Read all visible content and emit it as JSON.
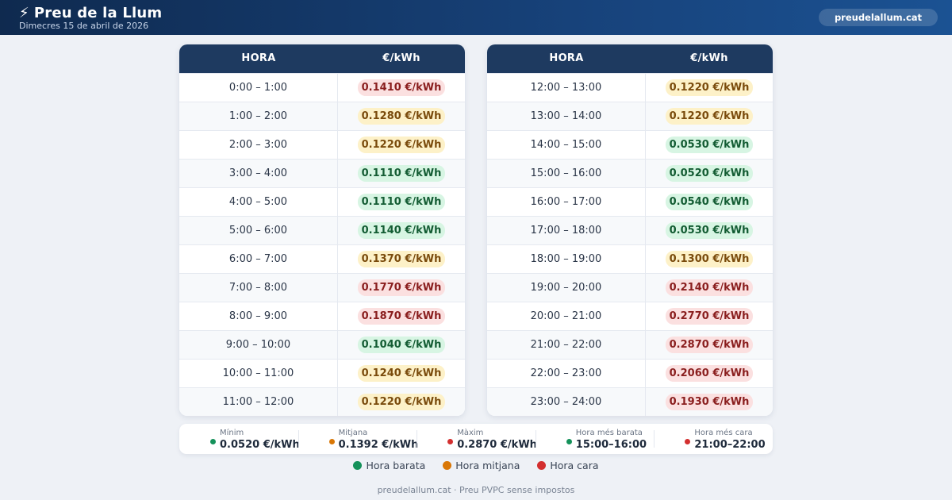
{
  "header": {
    "title": "Preu de la Llum",
    "bolt_icon": "⚡",
    "date": "Dimecres 15 de abril de 2026",
    "site_badge": "preudelallum.cat"
  },
  "tables": [
    {
      "col_hour": "HORA",
      "col_price": "€/kWh",
      "rows": [
        {
          "hour": "0:00 – 1:00",
          "price": "0.1410 €/kWh",
          "level": "high"
        },
        {
          "hour": "1:00 – 2:00",
          "price": "0.1280 €/kWh",
          "level": "mid"
        },
        {
          "hour": "2:00 – 3:00",
          "price": "0.1220 €/kWh",
          "level": "mid"
        },
        {
          "hour": "3:00 – 4:00",
          "price": "0.1110 €/kWh",
          "level": "low"
        },
        {
          "hour": "4:00 – 5:00",
          "price": "0.1110 €/kWh",
          "level": "low"
        },
        {
          "hour": "5:00 – 6:00",
          "price": "0.1140 €/kWh",
          "level": "low"
        },
        {
          "hour": "6:00 – 7:00",
          "price": "0.1370 €/kWh",
          "level": "mid"
        },
        {
          "hour": "7:00 – 8:00",
          "price": "0.1770 €/kWh",
          "level": "high"
        },
        {
          "hour": "8:00 – 9:00",
          "price": "0.1870 €/kWh",
          "level": "high"
        },
        {
          "hour": "9:00 – 10:00",
          "price": "0.1040 €/kWh",
          "level": "low"
        },
        {
          "hour": "10:00 – 11:00",
          "price": "0.1240 €/kWh",
          "level": "mid"
        },
        {
          "hour": "11:00 – 12:00",
          "price": "0.1220 €/kWh",
          "level": "mid"
        }
      ]
    },
    {
      "col_hour": "HORA",
      "col_price": "€/kWh",
      "rows": [
        {
          "hour": "12:00 – 13:00",
          "price": "0.1220 €/kWh",
          "level": "mid"
        },
        {
          "hour": "13:00 – 14:00",
          "price": "0.1220 €/kWh",
          "level": "mid"
        },
        {
          "hour": "14:00 – 15:00",
          "price": "0.0530 €/kWh",
          "level": "low"
        },
        {
          "hour": "15:00 – 16:00",
          "price": "0.0520 €/kWh",
          "level": "low"
        },
        {
          "hour": "16:00 – 17:00",
          "price": "0.0540 €/kWh",
          "level": "low"
        },
        {
          "hour": "17:00 – 18:00",
          "price": "0.0530 €/kWh",
          "level": "low"
        },
        {
          "hour": "18:00 – 19:00",
          "price": "0.1300 €/kWh",
          "level": "mid"
        },
        {
          "hour": "19:00 – 20:00",
          "price": "0.2140 €/kWh",
          "level": "high"
        },
        {
          "hour": "20:00 – 21:00",
          "price": "0.2770 €/kWh",
          "level": "high"
        },
        {
          "hour": "21:00 – 22:00",
          "price": "0.2870 €/kWh",
          "level": "high"
        },
        {
          "hour": "22:00 – 23:00",
          "price": "0.2060 €/kWh",
          "level": "high"
        },
        {
          "hour": "23:00 – 24:00",
          "price": "0.1930 €/kWh",
          "level": "high"
        }
      ]
    }
  ],
  "summary": [
    {
      "label": "Mínim",
      "value": "0.0520 €/kWh",
      "color": "#14915a"
    },
    {
      "label": "Mitjana",
      "value": "0.1392 €/kWh",
      "color": "#d97706"
    },
    {
      "label": "Màxim",
      "value": "0.2870 €/kWh",
      "color": "#d32f2f"
    },
    {
      "label": "Hora més barata",
      "value": "15:00–16:00",
      "color": "#14915a"
    },
    {
      "label": "Hora més cara",
      "value": "21:00–22:00",
      "color": "#d32f2f"
    }
  ],
  "legend": [
    {
      "label": "Hora barata",
      "color": "#14915a"
    },
    {
      "label": "Hora mitjana",
      "color": "#d97706"
    },
    {
      "label": "Hora cara",
      "color": "#d32f2f"
    }
  ],
  "footer": "preudelallum.cat · Preu PVPC sense impostos"
}
